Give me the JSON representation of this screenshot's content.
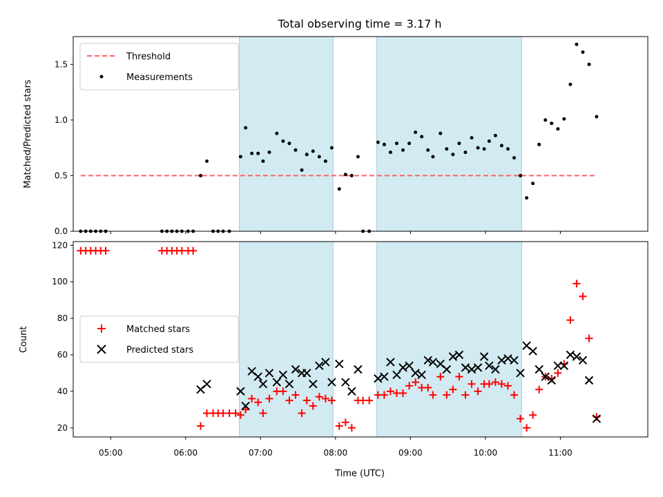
{
  "chart_data": [
    {
      "type": "scatter",
      "panel": "top",
      "title": "Total observing time = 3.17 h",
      "ylabel": "Matched/Predicted stars",
      "xlabel": "",
      "xlim": [
        "04:30",
        "12:10"
      ],
      "ylim": [
        0,
        1.75
      ],
      "yticks": [
        0.0,
        0.5,
        1.0,
        1.5
      ],
      "ytick_labels": [
        "0.0",
        "0.5",
        "1.0",
        "1.5"
      ],
      "xticks": [
        "05:00",
        "06:00",
        "07:00",
        "08:00",
        "09:00",
        "10:00",
        "11:00"
      ],
      "shaded_intervals": [
        [
          "06:43",
          "07:58"
        ],
        [
          "08:33",
          "10:29"
        ]
      ],
      "shade_color": "#add8e6",
      "legend_position": "upper left",
      "grid": false,
      "threshold": {
        "name": "Threshold",
        "value": 0.5,
        "x_range": [
          "04:36",
          "11:29"
        ],
        "color": "#ff6060",
        "style": "dashed"
      },
      "series": [
        {
          "name": "Measurements",
          "marker": "dot",
          "color": "#000000",
          "points": [
            [
              "04:36",
              0.0
            ],
            [
              "04:40",
              0.0
            ],
            [
              "04:44",
              0.0
            ],
            [
              "04:48",
              0.0
            ],
            [
              "04:52",
              0.0
            ],
            [
              "04:56",
              0.0
            ],
            [
              "05:41",
              0.0
            ],
            [
              "05:45",
              0.0
            ],
            [
              "05:49",
              0.0
            ],
            [
              "05:53",
              0.0
            ],
            [
              "05:57",
              0.0
            ],
            [
              "06:02",
              0.0
            ],
            [
              "06:06",
              0.0
            ],
            [
              "06:12",
              0.5
            ],
            [
              "06:17",
              0.63
            ],
            [
              "06:22",
              0.0
            ],
            [
              "06:26",
              0.0
            ],
            [
              "06:30",
              0.0
            ],
            [
              "06:35",
              0.0
            ],
            [
              "06:44",
              0.67
            ],
            [
              "06:48",
              0.93
            ],
            [
              "06:53",
              0.7
            ],
            [
              "06:58",
              0.7
            ],
            [
              "07:02",
              0.63
            ],
            [
              "07:07",
              0.71
            ],
            [
              "07:13",
              0.88
            ],
            [
              "07:18",
              0.81
            ],
            [
              "07:23",
              0.79
            ],
            [
              "07:28",
              0.73
            ],
            [
              "07:33",
              0.55
            ],
            [
              "07:37",
              0.69
            ],
            [
              "07:42",
              0.72
            ],
            [
              "07:47",
              0.67
            ],
            [
              "07:52",
              0.63
            ],
            [
              "07:57",
              0.75
            ],
            [
              "08:03",
              0.38
            ],
            [
              "08:08",
              0.51
            ],
            [
              "08:13",
              0.5
            ],
            [
              "08:18",
              0.67
            ],
            [
              "08:22",
              0.0
            ],
            [
              "08:27",
              0.0
            ],
            [
              "08:34",
              0.8
            ],
            [
              "08:39",
              0.78
            ],
            [
              "08:44",
              0.71
            ],
            [
              "08:49",
              0.79
            ],
            [
              "08:54",
              0.73
            ],
            [
              "08:59",
              0.79
            ],
            [
              "09:04",
              0.89
            ],
            [
              "09:09",
              0.85
            ],
            [
              "09:14",
              0.73
            ],
            [
              "09:18",
              0.67
            ],
            [
              "09:24",
              0.88
            ],
            [
              "09:29",
              0.74
            ],
            [
              "09:34",
              0.69
            ],
            [
              "09:39",
              0.79
            ],
            [
              "09:44",
              0.71
            ],
            [
              "09:49",
              0.84
            ],
            [
              "09:54",
              0.75
            ],
            [
              "09:59",
              0.74
            ],
            [
              "10:03",
              0.81
            ],
            [
              "10:08",
              0.86
            ],
            [
              "10:13",
              0.77
            ],
            [
              "10:18",
              0.74
            ],
            [
              "10:23",
              0.66
            ],
            [
              "10:28",
              0.5
            ],
            [
              "10:33",
              0.3
            ],
            [
              "10:38",
              0.43
            ],
            [
              "10:43",
              0.78
            ],
            [
              "10:48",
              1.0
            ],
            [
              "10:53",
              0.97
            ],
            [
              "10:58",
              0.92
            ],
            [
              "11:03",
              1.01
            ],
            [
              "11:08",
              1.32
            ],
            [
              "11:13",
              1.68
            ],
            [
              "11:18",
              1.61
            ],
            [
              "11:23",
              1.5
            ],
            [
              "11:29",
              1.03
            ]
          ]
        }
      ]
    },
    {
      "type": "scatter",
      "panel": "bottom",
      "title": "",
      "ylabel": "Count",
      "xlabel": "Time (UTC)",
      "xlim": [
        "04:30",
        "12:10"
      ],
      "ylim": [
        15,
        122
      ],
      "yticks": [
        20,
        40,
        60,
        80,
        100,
        120
      ],
      "ytick_labels": [
        "20",
        "40",
        "60",
        "80",
        "100",
        "120"
      ],
      "xticks": [
        "05:00",
        "06:00",
        "07:00",
        "08:00",
        "09:00",
        "10:00",
        "11:00"
      ],
      "shaded_intervals": [
        [
          "06:43",
          "07:58"
        ],
        [
          "08:33",
          "10:29"
        ]
      ],
      "shade_color": "#add8e6",
      "legend_position": "center left",
      "grid": false,
      "series": [
        {
          "name": "Matched stars",
          "marker": "plus",
          "color": "#ff0000",
          "points": [
            [
              "04:36",
              117
            ],
            [
              "04:40",
              117
            ],
            [
              "04:44",
              117
            ],
            [
              "04:48",
              117
            ],
            [
              "04:52",
              117
            ],
            [
              "04:56",
              117
            ],
            [
              "05:41",
              117
            ],
            [
              "05:45",
              117
            ],
            [
              "05:49",
              117
            ],
            [
              "05:53",
              117
            ],
            [
              "05:57",
              117
            ],
            [
              "06:02",
              117
            ],
            [
              "06:06",
              117
            ],
            [
              "06:12",
              21
            ],
            [
              "06:17",
              28
            ],
            [
              "06:22",
              28
            ],
            [
              "06:26",
              28
            ],
            [
              "06:30",
              28
            ],
            [
              "06:35",
              28
            ],
            [
              "06:40",
              28
            ],
            [
              "06:44",
              27
            ],
            [
              "06:48",
              30
            ],
            [
              "06:53",
              36
            ],
            [
              "06:58",
              34
            ],
            [
              "07:02",
              28
            ],
            [
              "07:07",
              36
            ],
            [
              "07:13",
              40
            ],
            [
              "07:18",
              40
            ],
            [
              "07:23",
              35
            ],
            [
              "07:28",
              38
            ],
            [
              "07:33",
              28
            ],
            [
              "07:37",
              35
            ],
            [
              "07:42",
              32
            ],
            [
              "07:47",
              37
            ],
            [
              "07:52",
              36
            ],
            [
              "07:57",
              35
            ],
            [
              "08:03",
              21
            ],
            [
              "08:08",
              23
            ],
            [
              "08:13",
              20
            ],
            [
              "08:18",
              35
            ],
            [
              "08:22",
              35
            ],
            [
              "08:27",
              35
            ],
            [
              "08:34",
              38
            ],
            [
              "08:39",
              38
            ],
            [
              "08:44",
              40
            ],
            [
              "08:49",
              39
            ],
            [
              "08:54",
              39
            ],
            [
              "08:59",
              43
            ],
            [
              "09:04",
              45
            ],
            [
              "09:09",
              42
            ],
            [
              "09:14",
              42
            ],
            [
              "09:18",
              38
            ],
            [
              "09:24",
              48
            ],
            [
              "09:29",
              38
            ],
            [
              "09:34",
              41
            ],
            [
              "09:39",
              48
            ],
            [
              "09:44",
              38
            ],
            [
              "09:49",
              44
            ],
            [
              "09:54",
              40
            ],
            [
              "09:59",
              44
            ],
            [
              "10:03",
              44
            ],
            [
              "10:08",
              45
            ],
            [
              "10:13",
              44
            ],
            [
              "10:18",
              43
            ],
            [
              "10:23",
              38
            ],
            [
              "10:28",
              25
            ],
            [
              "10:33",
              20
            ],
            [
              "10:38",
              27
            ],
            [
              "10:43",
              41
            ],
            [
              "10:48",
              48
            ],
            [
              "10:53",
              47
            ],
            [
              "10:58",
              50
            ],
            [
              "11:03",
              55
            ],
            [
              "11:08",
              79
            ],
            [
              "11:13",
              99
            ],
            [
              "11:18",
              92
            ],
            [
              "11:23",
              69
            ],
            [
              "11:29",
              26
            ]
          ]
        },
        {
          "name": "Predicted stars",
          "marker": "x",
          "color": "#000000",
          "points": [
            [
              "06:12",
              41
            ],
            [
              "06:17",
              44
            ],
            [
              "06:44",
              40
            ],
            [
              "06:48",
              32
            ],
            [
              "06:53",
              51
            ],
            [
              "06:58",
              48
            ],
            [
              "07:02",
              44
            ],
            [
              "07:07",
              50
            ],
            [
              "07:13",
              45
            ],
            [
              "07:18",
              49
            ],
            [
              "07:23",
              44
            ],
            [
              "07:28",
              52
            ],
            [
              "07:33",
              50
            ],
            [
              "07:37",
              50
            ],
            [
              "07:42",
              44
            ],
            [
              "07:47",
              54
            ],
            [
              "07:52",
              56
            ],
            [
              "07:57",
              45
            ],
            [
              "08:03",
              55
            ],
            [
              "08:08",
              45
            ],
            [
              "08:13",
              40
            ],
            [
              "08:18",
              52
            ],
            [
              "08:34",
              47
            ],
            [
              "08:39",
              48
            ],
            [
              "08:44",
              56
            ],
            [
              "08:49",
              49
            ],
            [
              "08:54",
              53
            ],
            [
              "08:59",
              54
            ],
            [
              "09:04",
              50
            ],
            [
              "09:09",
              49
            ],
            [
              "09:14",
              57
            ],
            [
              "09:18",
              56
            ],
            [
              "09:24",
              55
            ],
            [
              "09:29",
              52
            ],
            [
              "09:34",
              59
            ],
            [
              "09:39",
              60
            ],
            [
              "09:44",
              53
            ],
            [
              "09:49",
              52
            ],
            [
              "09:54",
              53
            ],
            [
              "09:59",
              59
            ],
            [
              "10:03",
              54
            ],
            [
              "10:08",
              52
            ],
            [
              "10:13",
              57
            ],
            [
              "10:18",
              58
            ],
            [
              "10:23",
              57
            ],
            [
              "10:28",
              50
            ],
            [
              "10:33",
              65
            ],
            [
              "10:38",
              62
            ],
            [
              "10:43",
              52
            ],
            [
              "10:48",
              48
            ],
            [
              "10:53",
              46
            ],
            [
              "10:58",
              54
            ],
            [
              "11:03",
              54
            ],
            [
              "11:08",
              60
            ],
            [
              "11:13",
              59
            ],
            [
              "11:18",
              57
            ],
            [
              "11:23",
              46
            ],
            [
              "11:29",
              25
            ]
          ]
        }
      ]
    }
  ]
}
